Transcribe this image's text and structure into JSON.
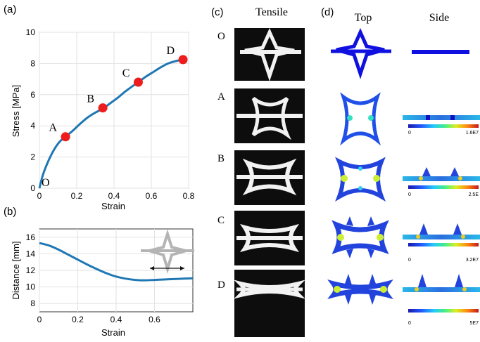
{
  "panels": {
    "a": "(a)",
    "b": "(b)",
    "c": "(c)",
    "d": "(d)"
  },
  "chart_data": [
    {
      "type": "line",
      "panel": "(a)",
      "xlabel": "Strain",
      "ylabel": "Stress [MPa]",
      "xlim": [
        0,
        0.8
      ],
      "ylim": [
        0,
        10
      ],
      "xticks": [
        "0",
        "0.2",
        "0.4",
        "0.6",
        "0.8"
      ],
      "yticks": [
        "0",
        "2",
        "4",
        "6",
        "8",
        "10"
      ],
      "grid": true,
      "line_color": "#1f77b4",
      "marker_color": "#ee1c1c",
      "series": [
        {
          "x": [
            0,
            0.02,
            0.05,
            0.08,
            0.11,
            0.14,
            0.18,
            0.22,
            0.26,
            0.3,
            0.34,
            0.38,
            0.42,
            0.46,
            0.5,
            0.53,
            0.57,
            0.61,
            0.65,
            0.69,
            0.73,
            0.77,
            0.79
          ],
          "values": [
            0,
            0.9,
            1.8,
            2.5,
            3.0,
            3.3,
            3.7,
            4.15,
            4.55,
            4.85,
            5.1,
            5.45,
            5.8,
            6.2,
            6.55,
            6.8,
            7.15,
            7.45,
            7.75,
            8.0,
            8.15,
            8.25,
            8.3
          ]
        }
      ],
      "points": [
        {
          "label": "O",
          "x": 0.0,
          "y": 0.0,
          "marker": false
        },
        {
          "label": "A",
          "x": 0.14,
          "y": 3.3,
          "marker": true
        },
        {
          "label": "B",
          "x": 0.34,
          "y": 5.15,
          "marker": true
        },
        {
          "label": "C",
          "x": 0.53,
          "y": 6.8,
          "marker": true
        },
        {
          "label": "D",
          "x": 0.77,
          "y": 8.25,
          "marker": true
        }
      ]
    },
    {
      "type": "line",
      "panel": "(b)",
      "xlabel": "Strain",
      "ylabel": "Distance [mm]",
      "xlim": [
        0,
        0.8
      ],
      "ylim": [
        7,
        17
      ],
      "xticks": [
        "0",
        "0.2",
        "0.4",
        "0.6"
      ],
      "yticks": [
        "8",
        "10",
        "12",
        "14",
        "16"
      ],
      "grid": true,
      "line_color": "#1f77b4",
      "series": [
        {
          "x": [
            0,
            0.05,
            0.1,
            0.15,
            0.2,
            0.25,
            0.3,
            0.35,
            0.4,
            0.45,
            0.5,
            0.55,
            0.6,
            0.65,
            0.7,
            0.75,
            0.8
          ],
          "values": [
            15.3,
            15.0,
            14.5,
            13.9,
            13.3,
            12.7,
            12.15,
            11.65,
            11.25,
            11.0,
            10.85,
            10.8,
            10.85,
            10.9,
            10.95,
            11.0,
            11.05
          ]
        }
      ]
    }
  ],
  "panel_c": {
    "header": "Tensile",
    "row_labels": [
      "O",
      "A",
      "B",
      "C",
      "D"
    ]
  },
  "panel_d": {
    "col_top": "Top",
    "col_side": "Side",
    "colorbars": [
      {
        "min": "0",
        "max": "1.6E7"
      },
      {
        "min": "0",
        "max": "2.5E"
      },
      {
        "min": "0",
        "max": "3.2E7"
      },
      {
        "min": "0",
        "max": "5E7"
      }
    ]
  }
}
